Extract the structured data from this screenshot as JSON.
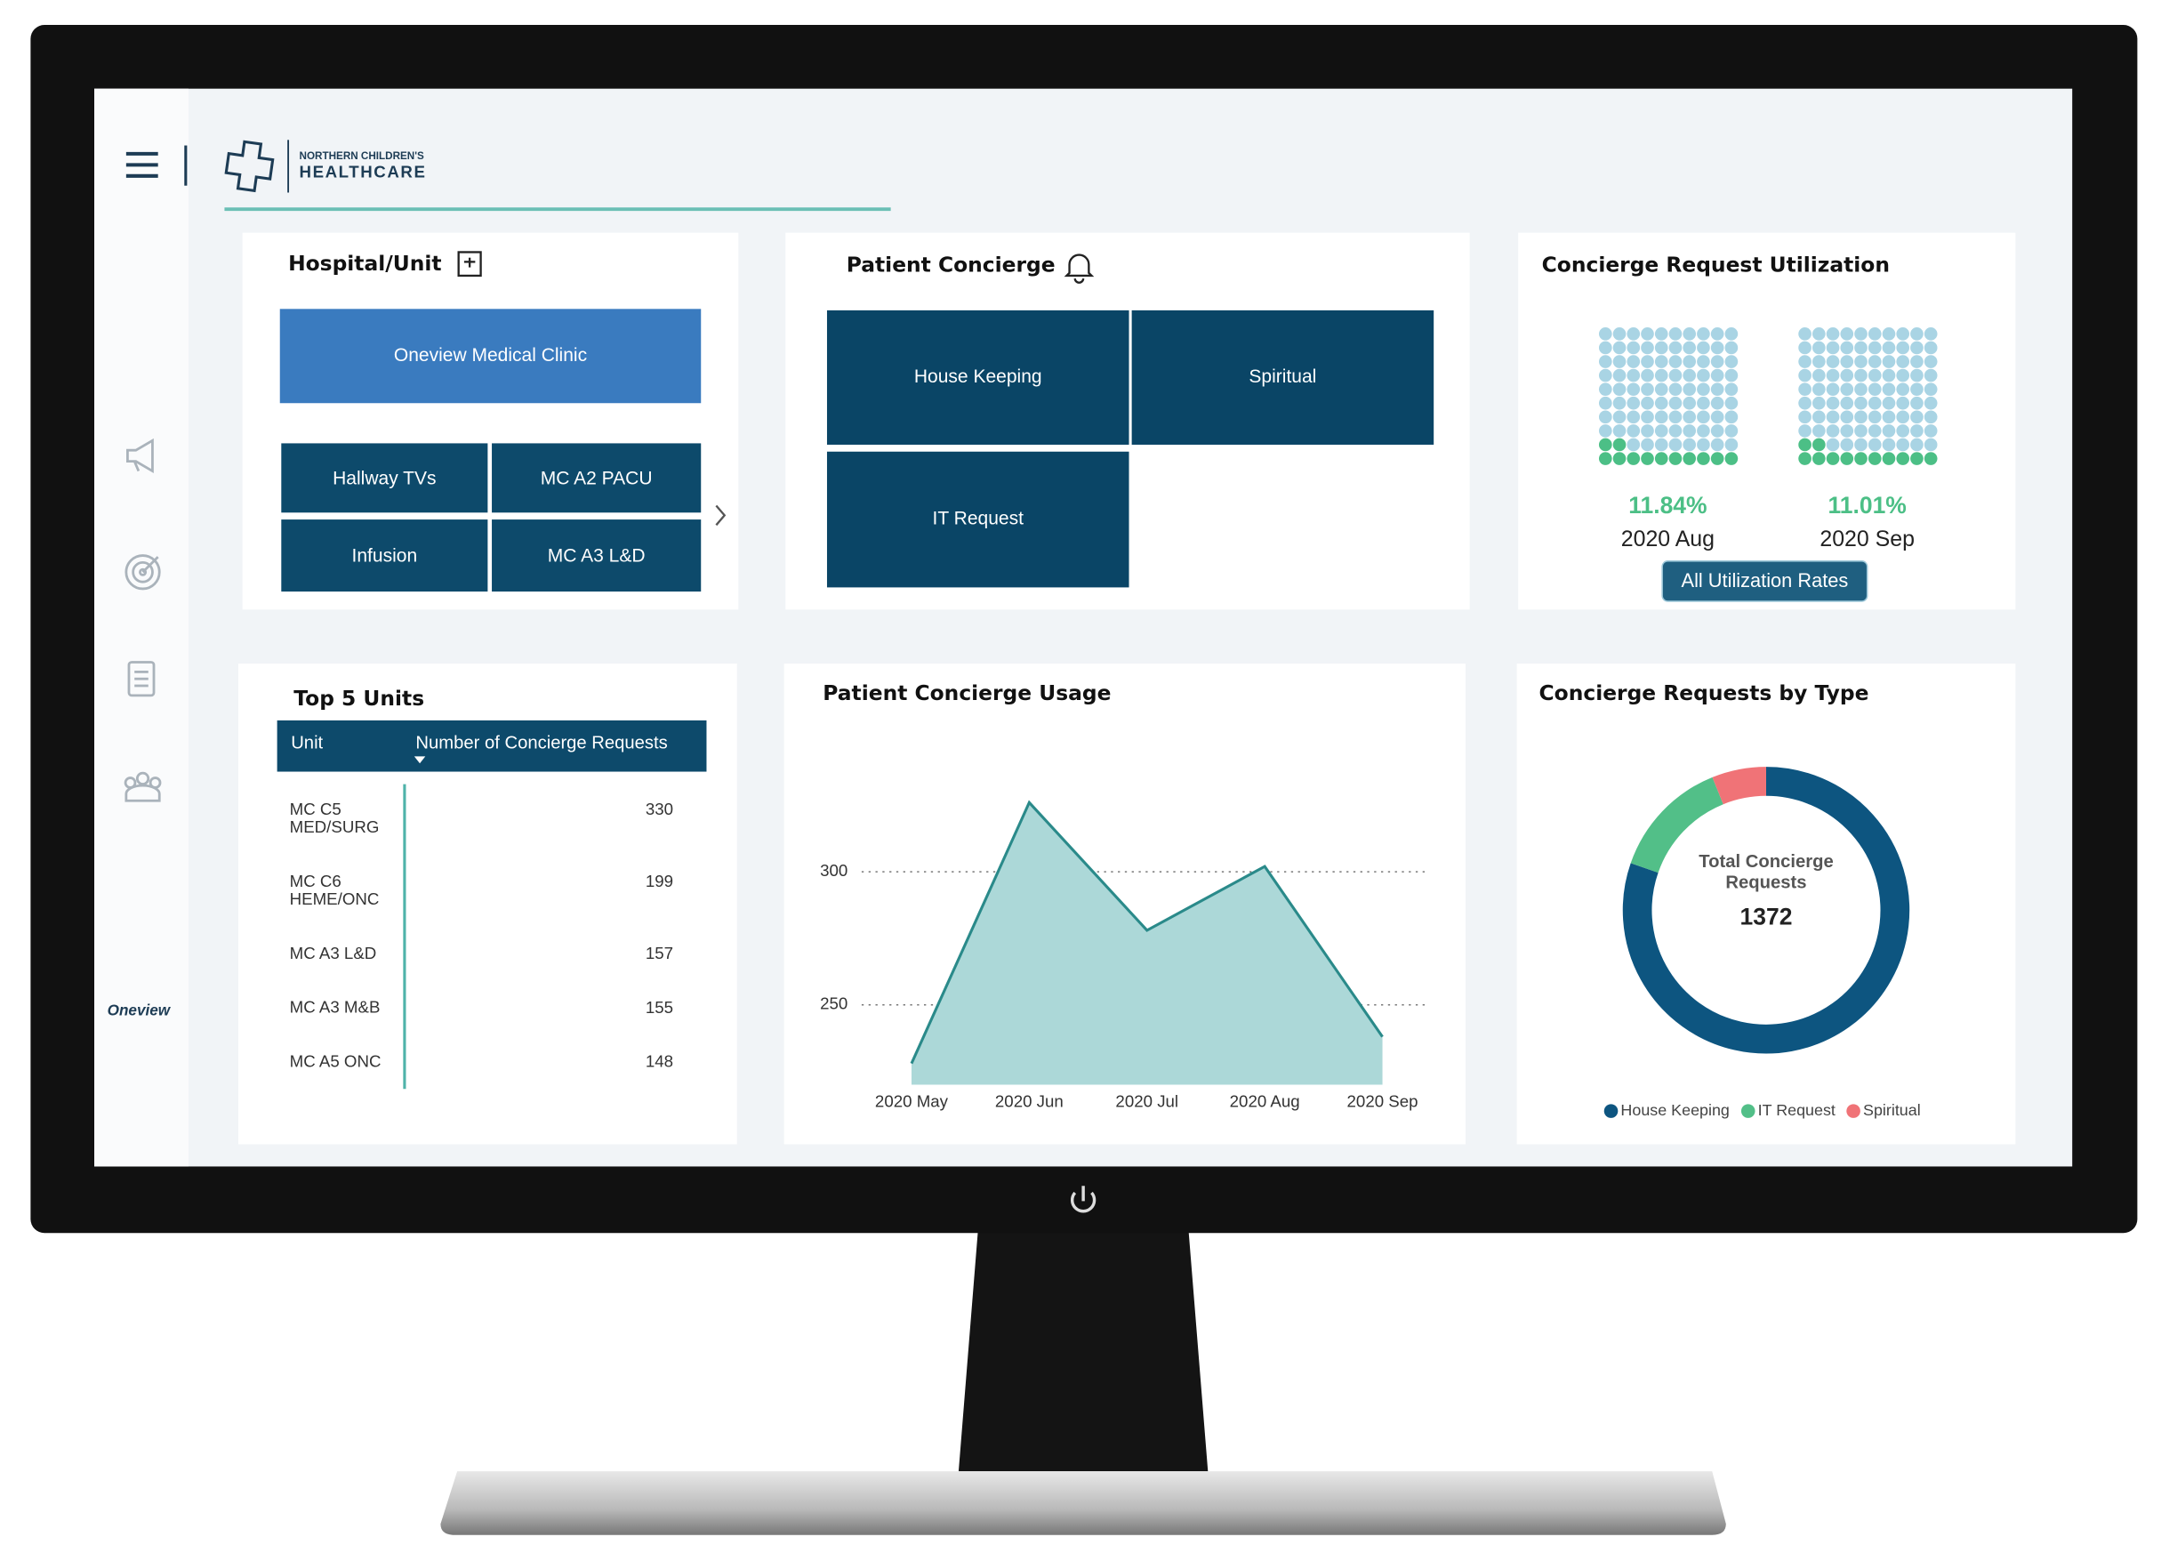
{
  "header": {
    "org": "NORTHERN CHILDREN'S",
    "brand": "HEALTHCARE"
  },
  "sidebar": {
    "logo": "Oneview"
  },
  "hospital_unit": {
    "title": "Hospital/Unit",
    "selected": "Oneview Medical Clinic",
    "units": [
      "Hallway TVs",
      "MC A2 PACU",
      "Infusion",
      "MC A3 L&D"
    ]
  },
  "patient_concierge": {
    "title": "Patient Concierge",
    "services": [
      "House Keeping",
      "Spiritual",
      "IT Request"
    ]
  },
  "utilization": {
    "title": "Concierge Request Utilization",
    "items": [
      {
        "label": "11.84%",
        "value": 11.84,
        "period": "2020 Aug"
      },
      {
        "label": "11.01%",
        "value": 11.01,
        "period": "2020 Sep"
      }
    ],
    "button": "All Utilization Rates",
    "color": "#4cbf86",
    "empty_color": "#a9d4e4"
  },
  "top_units": {
    "title": "Top 5 Units",
    "columns": [
      "Unit",
      "Number of Concierge Requests"
    ],
    "rows": [
      [
        "MC C5 MED/SURG",
        330
      ],
      [
        "MC C6 HEME/ONC",
        199
      ],
      [
        "MC A3 L&D",
        157
      ],
      [
        "MC A3 M&B",
        155
      ],
      [
        "MC A5 ONC",
        148
      ]
    ]
  },
  "chart_data": [
    {
      "type": "area",
      "title": "Patient Concierge Usage",
      "categories": [
        "2020 May",
        "2020 Jun",
        "2020 Jul",
        "2020 Aug",
        "2020 Sep"
      ],
      "values": [
        228,
        326,
        278,
        302,
        238
      ],
      "ylim": [
        220,
        335
      ],
      "yticks": [
        250,
        300
      ],
      "grid": true,
      "color": "#2a8a8a",
      "fill": "#acd8d8"
    },
    {
      "type": "donut",
      "title": "Concierge Requests by Type",
      "center_label": "Total Concierge Requests",
      "total": 1372,
      "categories": [
        "House Keeping",
        "IT Request",
        "Spiritual"
      ],
      "values": [
        1102,
        186,
        84
      ],
      "colors": [
        "#0d5580",
        "#52bf88",
        "#f07377"
      ]
    }
  ]
}
